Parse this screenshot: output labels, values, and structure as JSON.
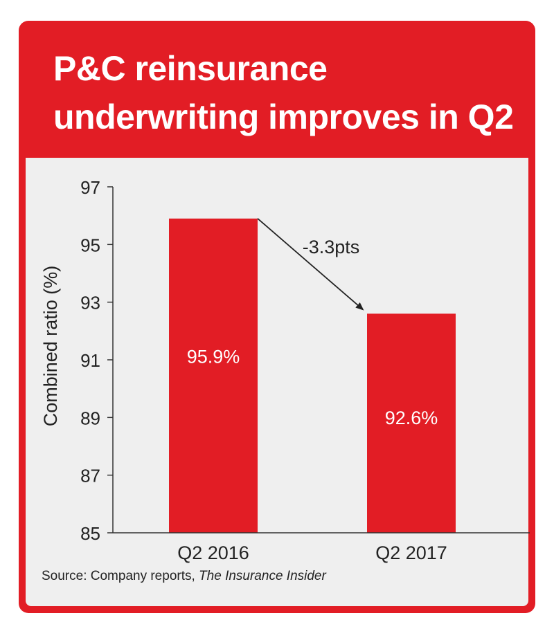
{
  "title": {
    "line1": "P&C reinsurance",
    "line2": "underwriting improves in Q2"
  },
  "source": {
    "prefix": "Source: Company reports, ",
    "publication": "The Insurance Insider"
  },
  "colors": {
    "accent": "#e21d25",
    "panel": "#efefef",
    "axis": "#333333"
  },
  "chart_data": {
    "type": "bar",
    "categories": [
      "Q2 2016",
      "Q2 2017"
    ],
    "values": [
      95.9,
      92.6
    ],
    "data_labels": [
      "95.9%",
      "92.6%"
    ],
    "ylabel": "Combined ratio (%)",
    "xlabel": "",
    "ylim": [
      85,
      97
    ],
    "yticks": [
      85,
      87,
      89,
      91,
      93,
      95,
      97
    ],
    "grid": false,
    "annotation": {
      "text": "-3.3pts",
      "from_category": "Q2 2016",
      "to_category": "Q2 2017"
    }
  }
}
